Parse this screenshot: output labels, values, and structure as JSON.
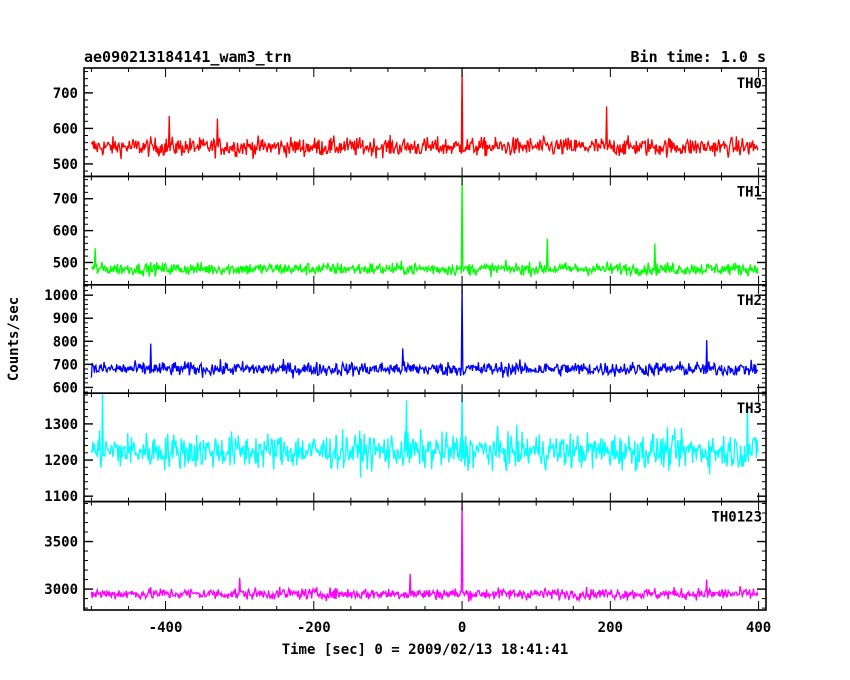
{
  "header": {
    "title": "ae090213184141_wam3_trn",
    "bin_time": "Bin time: 1.0 s"
  },
  "chart_data": {
    "type": "line",
    "xlabel": "Time [sec] 0 = 2009/02/13 18:41:41",
    "ylabel": "Counts/sec",
    "xlim": [
      -510,
      410
    ],
    "x_range": [
      -500,
      399
    ],
    "x_ticks": [
      -400,
      -200,
      0,
      200,
      400
    ],
    "panels": [
      {
        "name": "TH0",
        "color": "#ff0000",
        "ylim": [
          465,
          770
        ],
        "yticks": [
          500,
          600,
          700
        ],
        "baseline": 548,
        "noise": 24,
        "spike_x": 0,
        "spike_y": 770,
        "extra_peaks": [
          [
            -395,
            635
          ],
          [
            -330,
            628
          ],
          [
            195,
            662
          ]
        ]
      },
      {
        "name": "TH1",
        "color": "#00ff00",
        "ylim": [
          430,
          770
        ],
        "yticks": [
          500,
          600,
          700
        ],
        "baseline": 480,
        "noise": 18,
        "spike_x": 0,
        "spike_y": 770,
        "extra_peaks": [
          [
            115,
            575
          ],
          [
            -495,
            545
          ],
          [
            260,
            560
          ]
        ]
      },
      {
        "name": "TH2",
        "color": "#0000ff",
        "ylim": [
          575,
          1045
        ],
        "yticks": [
          600,
          700,
          800,
          900,
          1000
        ],
        "baseline": 680,
        "noise": 28,
        "spike_x": 0,
        "spike_y": 1045,
        "extra_peaks": [
          [
            -420,
            790
          ],
          [
            330,
            805
          ],
          [
            -80,
            770
          ]
        ]
      },
      {
        "name": "TH3",
        "color": "#00ffff",
        "ylim": [
          1085,
          1385
        ],
        "yticks": [
          1100,
          1200,
          1300
        ],
        "baseline": 1225,
        "noise": 45,
        "spike_x": 0,
        "spike_y": 1385,
        "extra_peaks": [
          [
            -485,
            1385
          ],
          [
            -75,
            1365
          ],
          [
            385,
            1355
          ]
        ]
      },
      {
        "name": "TH0123",
        "color": "#ff00ff",
        "ylim": [
          2780,
          3920
        ],
        "yticks": [
          3000,
          3500
        ],
        "baseline": 2950,
        "noise": 55,
        "spike_x": 0,
        "spike_y": 3920,
        "extra_peaks": [
          [
            -70,
            3160
          ],
          [
            -300,
            3120
          ],
          [
            330,
            3100
          ]
        ]
      }
    ]
  }
}
